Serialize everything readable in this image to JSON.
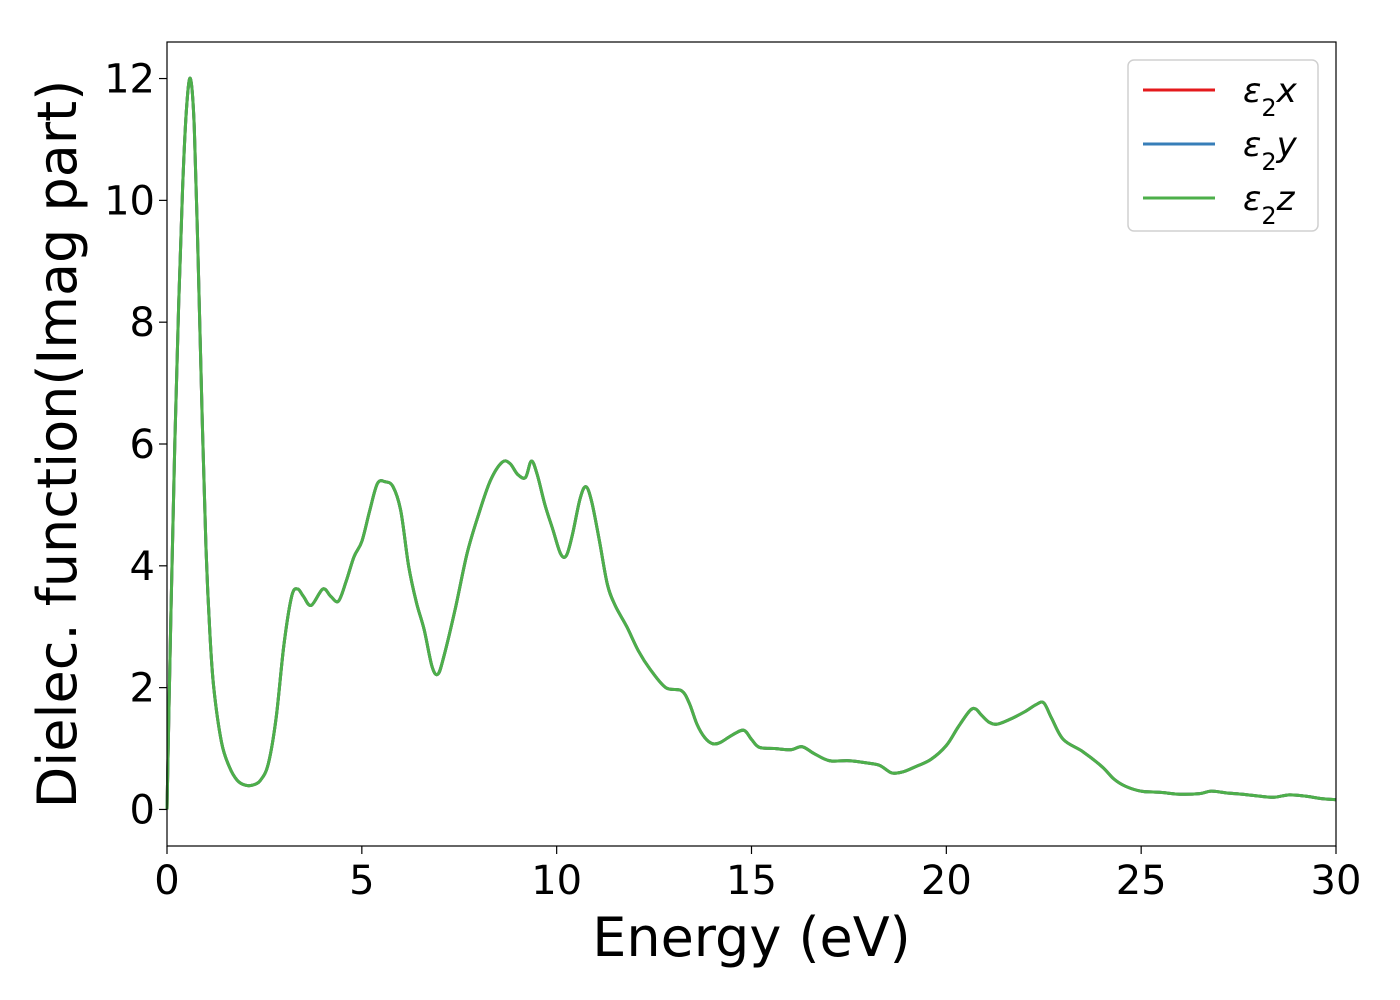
{
  "chart_data": {
    "type": "line",
    "xlabel": "Energy (eV)",
    "ylabel": "Dielec. function(Imag part)",
    "xlim": [
      0,
      30
    ],
    "ylim": [
      -0.6,
      12.6
    ],
    "xticks": [
      0,
      5,
      10,
      15,
      20,
      25,
      30
    ],
    "yticks": [
      0,
      2,
      4,
      6,
      8,
      10,
      12
    ],
    "grid": false,
    "legend_position": "top-right",
    "series": [
      {
        "name": "ε2x",
        "legend_symbol": "ε",
        "legend_subscript": "2",
        "legend_suffix": "x",
        "color": "#e41a1c",
        "x": [
          0,
          0.1,
          0.2,
          0.3,
          0.4,
          0.5,
          0.6,
          0.7,
          0.8,
          0.9,
          1.0,
          1.1,
          1.2,
          1.4,
          1.6,
          1.8,
          2.0,
          2.2,
          2.4,
          2.6,
          2.8,
          3.0,
          3.2,
          3.35,
          3.5,
          3.7,
          4.0,
          4.2,
          4.4,
          4.6,
          4.8,
          5.0,
          5.2,
          5.4,
          5.6,
          5.8,
          6.0,
          6.2,
          6.4,
          6.6,
          6.8,
          6.95,
          7.1,
          7.4,
          7.7,
          8.0,
          8.3,
          8.6,
          8.8,
          9.0,
          9.2,
          9.35,
          9.5,
          9.7,
          9.9,
          10.1,
          10.25,
          10.4,
          10.6,
          10.75,
          10.9,
          11.1,
          11.3,
          11.5,
          11.8,
          12.1,
          12.4,
          12.8,
          13.2,
          13.4,
          13.6,
          13.8,
          14.0,
          14.2,
          14.5,
          14.8,
          15.0,
          15.2,
          15.6,
          16.0,
          16.3,
          16.6,
          17.0,
          17.5,
          18.0,
          18.3,
          18.6,
          18.9,
          19.2,
          19.6,
          20.0,
          20.3,
          20.6,
          20.75,
          20.9,
          21.1,
          21.3,
          21.6,
          22.0,
          22.3,
          22.5,
          22.7,
          23.0,
          23.5,
          24.0,
          24.3,
          24.6,
          25.0,
          25.5,
          26.0,
          26.5,
          26.8,
          27.2,
          27.6,
          28.0,
          28.4,
          28.8,
          29.2,
          29.6,
          30.0
        ],
        "y": [
          0.0,
          3.2,
          6.0,
          8.3,
          10.2,
          11.5,
          12.0,
          11.2,
          9.0,
          6.5,
          4.3,
          2.9,
          2.0,
          1.1,
          0.7,
          0.48,
          0.4,
          0.4,
          0.48,
          0.75,
          1.5,
          2.7,
          3.5,
          3.62,
          3.5,
          3.35,
          3.62,
          3.5,
          3.42,
          3.75,
          4.15,
          4.4,
          4.9,
          5.35,
          5.38,
          5.3,
          4.9,
          4.0,
          3.4,
          2.95,
          2.35,
          2.22,
          2.5,
          3.3,
          4.2,
          4.85,
          5.4,
          5.7,
          5.68,
          5.5,
          5.45,
          5.72,
          5.5,
          5.0,
          4.6,
          4.2,
          4.17,
          4.5,
          5.1,
          5.3,
          5.05,
          4.4,
          3.7,
          3.35,
          3.0,
          2.6,
          2.3,
          2.0,
          1.95,
          1.75,
          1.4,
          1.18,
          1.08,
          1.1,
          1.22,
          1.3,
          1.15,
          1.02,
          1.0,
          0.98,
          1.03,
          0.92,
          0.8,
          0.8,
          0.76,
          0.72,
          0.6,
          0.62,
          0.7,
          0.82,
          1.05,
          1.35,
          1.62,
          1.65,
          1.55,
          1.43,
          1.4,
          1.47,
          1.6,
          1.72,
          1.75,
          1.5,
          1.15,
          0.95,
          0.7,
          0.5,
          0.38,
          0.3,
          0.28,
          0.25,
          0.26,
          0.3,
          0.27,
          0.25,
          0.22,
          0.2,
          0.24,
          0.22,
          0.18,
          0.16
        ]
      },
      {
        "name": "ε2y",
        "legend_symbol": "ε",
        "legend_subscript": "2",
        "legend_suffix": "y",
        "color": "#377eb8",
        "x": [
          0,
          0.1,
          0.2,
          0.3,
          0.4,
          0.5,
          0.6,
          0.7,
          0.8,
          0.9,
          1.0,
          1.1,
          1.2,
          1.4,
          1.6,
          1.8,
          2.0,
          2.2,
          2.4,
          2.6,
          2.8,
          3.0,
          3.2,
          3.35,
          3.5,
          3.7,
          4.0,
          4.2,
          4.4,
          4.6,
          4.8,
          5.0,
          5.2,
          5.4,
          5.6,
          5.8,
          6.0,
          6.2,
          6.4,
          6.6,
          6.8,
          6.95,
          7.1,
          7.4,
          7.7,
          8.0,
          8.3,
          8.6,
          8.8,
          9.0,
          9.2,
          9.35,
          9.5,
          9.7,
          9.9,
          10.1,
          10.25,
          10.4,
          10.6,
          10.75,
          10.9,
          11.1,
          11.3,
          11.5,
          11.8,
          12.1,
          12.4,
          12.8,
          13.2,
          13.4,
          13.6,
          13.8,
          14.0,
          14.2,
          14.5,
          14.8,
          15.0,
          15.2,
          15.6,
          16.0,
          16.3,
          16.6,
          17.0,
          17.5,
          18.0,
          18.3,
          18.6,
          18.9,
          19.2,
          19.6,
          20.0,
          20.3,
          20.6,
          20.75,
          20.9,
          21.1,
          21.3,
          21.6,
          22.0,
          22.3,
          22.5,
          22.7,
          23.0,
          23.5,
          24.0,
          24.3,
          24.6,
          25.0,
          25.5,
          26.0,
          26.5,
          26.8,
          27.2,
          27.6,
          28.0,
          28.4,
          28.8,
          29.2,
          29.6,
          30.0
        ],
        "y": [
          0.0,
          3.2,
          6.0,
          8.3,
          10.2,
          11.5,
          12.0,
          11.2,
          9.0,
          6.5,
          4.3,
          2.9,
          2.0,
          1.1,
          0.7,
          0.48,
          0.4,
          0.4,
          0.48,
          0.75,
          1.5,
          2.7,
          3.5,
          3.62,
          3.5,
          3.35,
          3.62,
          3.5,
          3.42,
          3.75,
          4.15,
          4.4,
          4.9,
          5.35,
          5.38,
          5.3,
          4.9,
          4.0,
          3.4,
          2.95,
          2.35,
          2.22,
          2.5,
          3.3,
          4.2,
          4.85,
          5.4,
          5.7,
          5.68,
          5.5,
          5.45,
          5.72,
          5.5,
          5.0,
          4.6,
          4.2,
          4.17,
          4.5,
          5.1,
          5.3,
          5.05,
          4.4,
          3.7,
          3.35,
          3.0,
          2.6,
          2.3,
          2.0,
          1.95,
          1.75,
          1.4,
          1.18,
          1.08,
          1.1,
          1.22,
          1.3,
          1.15,
          1.02,
          1.0,
          0.98,
          1.03,
          0.92,
          0.8,
          0.8,
          0.76,
          0.72,
          0.6,
          0.62,
          0.7,
          0.82,
          1.05,
          1.35,
          1.62,
          1.65,
          1.55,
          1.43,
          1.4,
          1.47,
          1.6,
          1.72,
          1.75,
          1.5,
          1.15,
          0.95,
          0.7,
          0.5,
          0.38,
          0.3,
          0.28,
          0.25,
          0.26,
          0.3,
          0.27,
          0.25,
          0.22,
          0.2,
          0.24,
          0.22,
          0.18,
          0.16
        ]
      },
      {
        "name": "ε2z",
        "legend_symbol": "ε",
        "legend_subscript": "2",
        "legend_suffix": "z",
        "color": "#4daf4a",
        "x": [
          0,
          0.1,
          0.2,
          0.3,
          0.4,
          0.5,
          0.6,
          0.7,
          0.8,
          0.9,
          1.0,
          1.1,
          1.2,
          1.4,
          1.6,
          1.8,
          2.0,
          2.2,
          2.4,
          2.6,
          2.8,
          3.0,
          3.2,
          3.35,
          3.5,
          3.7,
          4.0,
          4.2,
          4.4,
          4.6,
          4.8,
          5.0,
          5.2,
          5.4,
          5.6,
          5.8,
          6.0,
          6.2,
          6.4,
          6.6,
          6.8,
          6.95,
          7.1,
          7.4,
          7.7,
          8.0,
          8.3,
          8.6,
          8.8,
          9.0,
          9.2,
          9.35,
          9.5,
          9.7,
          9.9,
          10.1,
          10.25,
          10.4,
          10.6,
          10.75,
          10.9,
          11.1,
          11.3,
          11.5,
          11.8,
          12.1,
          12.4,
          12.8,
          13.2,
          13.4,
          13.6,
          13.8,
          14.0,
          14.2,
          14.5,
          14.8,
          15.0,
          15.2,
          15.6,
          16.0,
          16.3,
          16.6,
          17.0,
          17.5,
          18.0,
          18.3,
          18.6,
          18.9,
          19.2,
          19.6,
          20.0,
          20.3,
          20.6,
          20.75,
          20.9,
          21.1,
          21.3,
          21.6,
          22.0,
          22.3,
          22.5,
          22.7,
          23.0,
          23.5,
          24.0,
          24.3,
          24.6,
          25.0,
          25.5,
          26.0,
          26.5,
          26.8,
          27.2,
          27.6,
          28.0,
          28.4,
          28.8,
          29.2,
          29.6,
          30.0
        ],
        "y": [
          0.0,
          3.2,
          6.0,
          8.3,
          10.2,
          11.5,
          12.0,
          11.2,
          9.0,
          6.5,
          4.3,
          2.9,
          2.0,
          1.1,
          0.7,
          0.48,
          0.4,
          0.4,
          0.48,
          0.75,
          1.5,
          2.7,
          3.5,
          3.62,
          3.5,
          3.35,
          3.62,
          3.5,
          3.42,
          3.75,
          4.15,
          4.4,
          4.9,
          5.35,
          5.38,
          5.3,
          4.9,
          4.0,
          3.4,
          2.95,
          2.35,
          2.22,
          2.5,
          3.3,
          4.2,
          4.85,
          5.4,
          5.7,
          5.68,
          5.5,
          5.45,
          5.72,
          5.5,
          5.0,
          4.6,
          4.2,
          4.17,
          4.5,
          5.1,
          5.3,
          5.05,
          4.4,
          3.7,
          3.35,
          3.0,
          2.6,
          2.3,
          2.0,
          1.95,
          1.75,
          1.4,
          1.18,
          1.08,
          1.1,
          1.22,
          1.3,
          1.15,
          1.02,
          1.0,
          0.98,
          1.03,
          0.92,
          0.8,
          0.8,
          0.76,
          0.72,
          0.6,
          0.62,
          0.7,
          0.82,
          1.05,
          1.35,
          1.62,
          1.65,
          1.55,
          1.43,
          1.4,
          1.47,
          1.6,
          1.72,
          1.75,
          1.5,
          1.15,
          0.95,
          0.7,
          0.5,
          0.38,
          0.3,
          0.28,
          0.25,
          0.26,
          0.3,
          0.27,
          0.25,
          0.22,
          0.2,
          0.24,
          0.22,
          0.18,
          0.16
        ]
      }
    ]
  }
}
